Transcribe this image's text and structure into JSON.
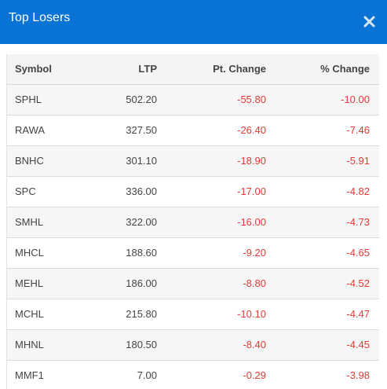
{
  "modal": {
    "title": "Top Losers",
    "close_icon": "close-icon",
    "header_color": "#0a74d6"
  },
  "table": {
    "headers": {
      "symbol": "Symbol",
      "ltp": "LTP",
      "pt_change": "Pt. Change",
      "pct_change": "% Change"
    },
    "negative_color": "#e53935",
    "rows": [
      {
        "symbol": "SPHL",
        "ltp": "502.20",
        "pt_change": "-55.80",
        "pct_change": "-10.00"
      },
      {
        "symbol": "RAWA",
        "ltp": "327.50",
        "pt_change": "-26.40",
        "pct_change": "-7.46"
      },
      {
        "symbol": "BNHC",
        "ltp": "301.10",
        "pt_change": "-18.90",
        "pct_change": "-5.91"
      },
      {
        "symbol": "SPC",
        "ltp": "336.00",
        "pt_change": "-17.00",
        "pct_change": "-4.82"
      },
      {
        "symbol": "SMHL",
        "ltp": "322.00",
        "pt_change": "-16.00",
        "pct_change": "-4.73"
      },
      {
        "symbol": "MHCL",
        "ltp": "188.60",
        "pt_change": "-9.20",
        "pct_change": "-4.65"
      },
      {
        "symbol": "MEHL",
        "ltp": "186.00",
        "pt_change": "-8.80",
        "pct_change": "-4.52"
      },
      {
        "symbol": "MCHL",
        "ltp": "215.80",
        "pt_change": "-10.10",
        "pct_change": "-4.47"
      },
      {
        "symbol": "MHNL",
        "ltp": "180.50",
        "pt_change": "-8.40",
        "pct_change": "-4.45"
      },
      {
        "symbol": "MMF1",
        "ltp": "7.00",
        "pt_change": "-0.29",
        "pct_change": "-3.98"
      }
    ]
  }
}
